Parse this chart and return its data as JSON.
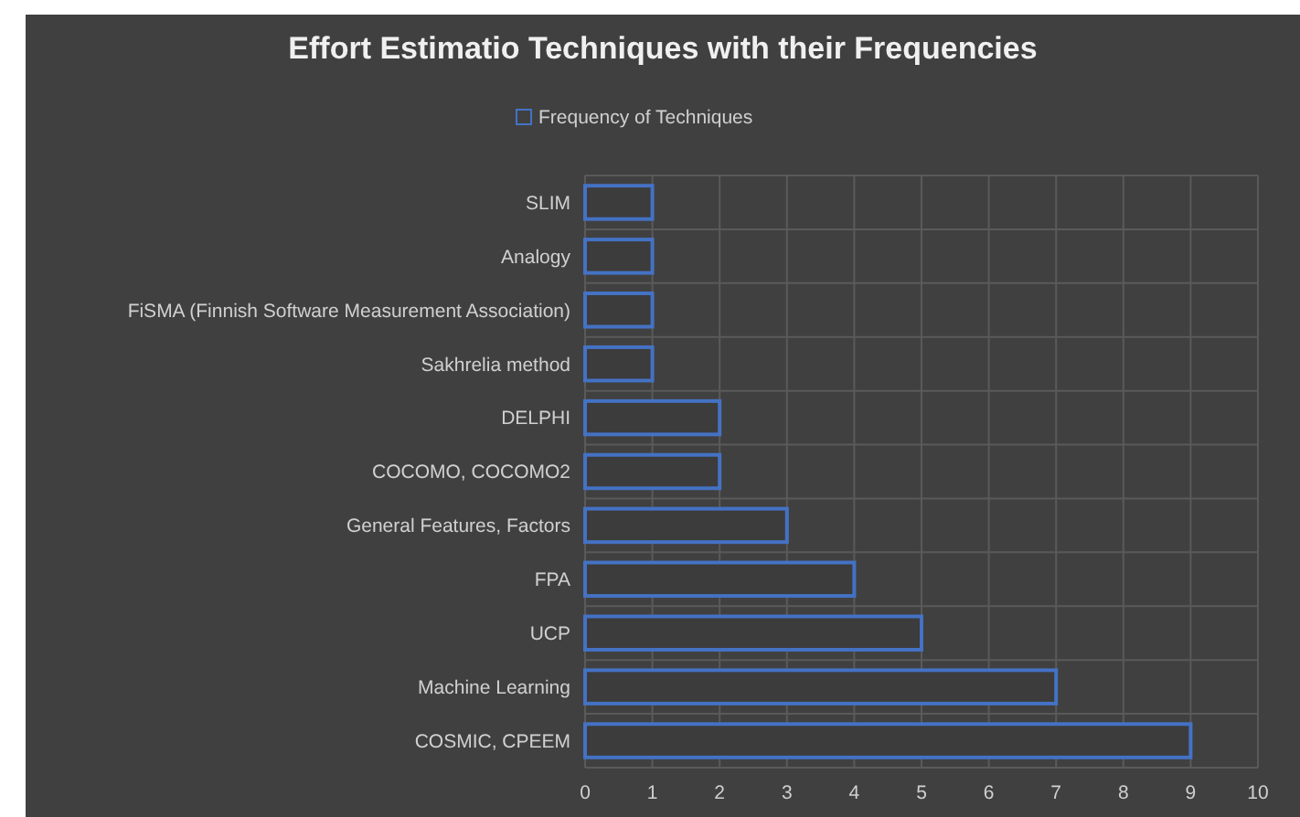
{
  "chart_data": {
    "type": "bar",
    "orientation": "horizontal",
    "title": "Effort Estimatio Techniques with their Frequencies",
    "categories": [
      "SLIM",
      "Analogy",
      "FiSMA (Finnish Software Measurement Association)",
      "Sakhrelia method",
      "DELPHI",
      "COCOMO, COCOMO2",
      "General Features, Factors",
      "FPA",
      "UCP",
      "Machine Learning",
      "COSMIC, CPEEM"
    ],
    "series": [
      {
        "name": "Frequency of Techniques",
        "color": "#4472c4",
        "values": [
          1,
          1,
          1,
          1,
          2,
          2,
          3,
          4,
          5,
          7,
          9
        ]
      }
    ],
    "xlim": [
      0,
      10
    ],
    "xticks": [
      0,
      1,
      2,
      3,
      4,
      5,
      6,
      7,
      8,
      9,
      10
    ],
    "grid": true,
    "legend": "top"
  }
}
